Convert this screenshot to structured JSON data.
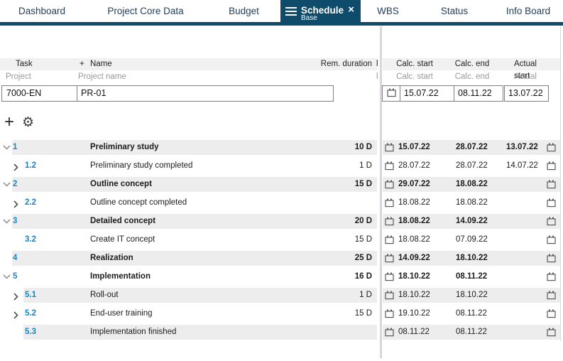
{
  "colors": {
    "navy": "#0f4b6a",
    "tab_text": "#1d3e5c",
    "task_number_blue": "#1585c5",
    "stripe_gray": "#ededed",
    "header_gray": "#f1f1f2",
    "splitter_violet": "#ddd2e2"
  },
  "tabs": [
    {
      "label": "Dashboard",
      "active": false
    },
    {
      "label": "Project Core Data",
      "active": false
    },
    {
      "label": "Budget",
      "active": false
    },
    {
      "label": "Schedule",
      "active": true,
      "sublabel": "Base",
      "close_label": "×"
    },
    {
      "label": "WBS",
      "active": false
    },
    {
      "label": "Status",
      "active": false
    },
    {
      "label": "Info Board",
      "active": false
    }
  ],
  "table": {
    "left_headers": {
      "task": "Task",
      "add_column": "+",
      "name": "Name",
      "rem_duration": "Rem. duration"
    },
    "left_subheaders": {
      "project": "Project",
      "project_name": "Project name"
    },
    "right_headers": {
      "calc_start": "Calc. start",
      "calc_end": "Calc. end",
      "actual_start": "Actual start"
    },
    "right_subheaders": {
      "calc_start": "Calc. start",
      "calc_end": "Calc. end",
      "actual_start": "Actual start"
    },
    "clipped_header_fragment": "l",
    "project_row": {
      "id": "7000-EN",
      "name": "PR-01",
      "calc_start": "15.07.22",
      "calc_end": "08.11.22",
      "actual_start": "13.07.22"
    },
    "toolbar": {
      "add_label": "+",
      "settings_icon": "⚙"
    },
    "rows": [
      {
        "num": "1",
        "level": 1,
        "chevron": "down",
        "bold": true,
        "name": "Preliminary study",
        "duration": "10 D",
        "calc_start": "15.07.22",
        "calc_end": "28.07.22",
        "actual_start": "13.07.22"
      },
      {
        "num": "1.2",
        "level": 2,
        "chevron": "right",
        "bold": false,
        "name": "Preliminary study completed",
        "duration": "1 D",
        "calc_start": "28.07.22",
        "calc_end": "28.07.22",
        "actual_start": "14.07.22"
      },
      {
        "num": "2",
        "level": 1,
        "chevron": "down",
        "bold": true,
        "name": "Outline concept",
        "duration": "15 D",
        "calc_start": "29.07.22",
        "calc_end": "18.08.22",
        "actual_start": ""
      },
      {
        "num": "2.2",
        "level": 2,
        "chevron": "right",
        "bold": false,
        "name": "Outline concept completed",
        "duration": "",
        "calc_start": "18.08.22",
        "calc_end": "18.08.22",
        "actual_start": ""
      },
      {
        "num": "3",
        "level": 1,
        "chevron": "down",
        "bold": true,
        "name": "Detailed concept",
        "duration": "20 D",
        "calc_start": "18.08.22",
        "calc_end": "14.09.22",
        "actual_start": ""
      },
      {
        "num": "3.2",
        "level": 2,
        "chevron": "none",
        "bold": false,
        "name": "Create IT concept",
        "duration": "15 D",
        "calc_start": "18.08.22",
        "calc_end": "07.09.22",
        "actual_start": ""
      },
      {
        "num": "4",
        "level": 1,
        "chevron": "none",
        "bold": true,
        "name": "Realization",
        "duration": "25 D",
        "calc_start": "14.09.22",
        "calc_end": "18.10.22",
        "actual_start": ""
      },
      {
        "num": "5",
        "level": 1,
        "chevron": "down",
        "bold": true,
        "name": "Implementation",
        "duration": "16 D",
        "calc_start": "18.10.22",
        "calc_end": "08.11.22",
        "actual_start": ""
      },
      {
        "num": "5.1",
        "level": 2,
        "chevron": "right",
        "bold": false,
        "name": "Roll-out",
        "duration": "1 D",
        "calc_start": "18.10.22",
        "calc_end": "18.10.22",
        "actual_start": ""
      },
      {
        "num": "5.2",
        "level": 2,
        "chevron": "right",
        "bold": false,
        "name": "End-user training",
        "duration": "15 D",
        "calc_start": "19.10.22",
        "calc_end": "08.11.22",
        "actual_start": ""
      },
      {
        "num": "5.3",
        "level": 2,
        "chevron": "none",
        "bold": false,
        "name": "Implementation finished",
        "duration": "",
        "calc_start": "08.11.22",
        "calc_end": "08.11.22",
        "actual_start": ""
      }
    ]
  }
}
